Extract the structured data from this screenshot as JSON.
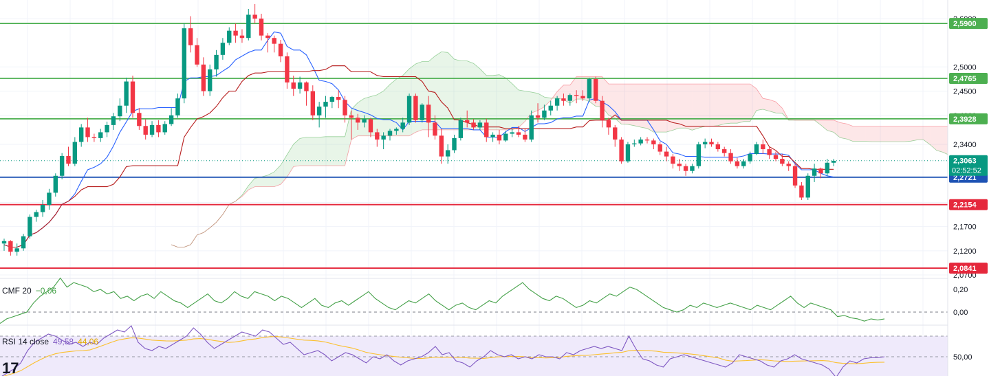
{
  "chart_data": {
    "type": "candlestick",
    "price_axis": {
      "ticks": [
        "2,6000",
        "2,5000",
        "2,4500",
        "2,4000",
        "2,3400",
        "2,2700",
        "2,2200",
        "2,1700",
        "2,1200",
        "2,0700"
      ]
    },
    "horizontal_levels": [
      {
        "label": "2,5900",
        "value": 2.59,
        "color": "#4caf50"
      },
      {
        "label": "2,4765",
        "value": 2.4765,
        "color": "#4caf50"
      },
      {
        "label": "2,3928",
        "value": 2.3928,
        "color": "#4caf50"
      },
      {
        "label": "2,2721",
        "value": 2.2721,
        "color": "#1e53b4"
      },
      {
        "label": "2,2154",
        "value": 2.2154,
        "color": "#e5283c"
      },
      {
        "label": "2,0841",
        "value": 2.0841,
        "color": "#e5283c"
      }
    ],
    "last_price": {
      "label": "2,3063",
      "value": 2.3063,
      "countdown": "02:52:52",
      "color": "#089981"
    },
    "candle_colors": {
      "up": "#089981",
      "down": "#f23645"
    },
    "candles": [
      [
        2.135,
        2.145,
        2.12,
        2.14
      ],
      [
        2.14,
        2.142,
        2.11,
        2.118
      ],
      [
        2.118,
        2.135,
        2.11,
        2.125
      ],
      [
        2.125,
        2.155,
        2.12,
        2.15
      ],
      [
        2.15,
        2.195,
        2.145,
        2.19
      ],
      [
        2.19,
        2.205,
        2.18,
        2.2
      ],
      [
        2.2,
        2.225,
        2.19,
        2.215
      ],
      [
        2.215,
        2.248,
        2.205,
        2.24
      ],
      [
        2.24,
        2.28,
        2.232,
        2.275
      ],
      [
        2.275,
        2.322,
        2.268,
        2.316
      ],
      [
        2.316,
        2.335,
        2.295,
        2.3
      ],
      [
        2.3,
        2.355,
        2.295,
        2.345
      ],
      [
        2.345,
        2.382,
        2.335,
        2.375
      ],
      [
        2.375,
        2.395,
        2.345,
        2.355
      ],
      [
        2.355,
        2.362,
        2.345,
        2.353
      ],
      [
        2.353,
        2.372,
        2.345,
        2.365
      ],
      [
        2.365,
        2.387,
        2.355,
        2.38
      ],
      [
        2.38,
        2.405,
        2.37,
        2.398
      ],
      [
        2.398,
        2.435,
        2.388,
        2.42
      ],
      [
        2.42,
        2.478,
        2.405,
        2.47
      ],
      [
        2.47,
        2.482,
        2.395,
        2.405
      ],
      [
        2.405,
        2.415,
        2.37,
        2.378
      ],
      [
        2.378,
        2.392,
        2.35,
        2.36
      ],
      [
        2.36,
        2.388,
        2.355,
        2.38
      ],
      [
        2.38,
        2.39,
        2.355,
        2.365
      ],
      [
        2.365,
        2.388,
        2.36,
        2.382
      ],
      [
        2.382,
        2.415,
        2.378,
        2.4
      ],
      [
        2.4,
        2.445,
        2.395,
        2.435
      ],
      [
        2.435,
        2.59,
        2.425,
        2.58
      ],
      [
        2.58,
        2.605,
        2.53,
        2.545
      ],
      [
        2.545,
        2.56,
        2.5,
        2.505
      ],
      [
        2.505,
        2.52,
        2.44,
        2.45
      ],
      [
        2.45,
        2.505,
        2.44,
        2.495
      ],
      [
        2.495,
        2.535,
        2.48,
        2.525
      ],
      [
        2.525,
        2.56,
        2.515,
        2.55
      ],
      [
        2.55,
        2.582,
        2.545,
        2.575
      ],
      [
        2.575,
        2.59,
        2.55,
        2.565
      ],
      [
        2.565,
        2.578,
        2.55,
        2.56
      ],
      [
        2.56,
        2.62,
        2.555,
        2.608
      ],
      [
        2.608,
        2.63,
        2.59,
        2.6
      ],
      [
        2.6,
        2.61,
        2.555,
        2.565
      ],
      [
        2.565,
        2.57,
        2.53,
        2.56
      ],
      [
        2.56,
        2.565,
        2.53,
        2.548
      ],
      [
        2.548,
        2.556,
        2.51,
        2.522
      ],
      [
        2.522,
        2.53,
        2.455,
        2.468
      ],
      [
        2.468,
        2.482,
        2.44,
        2.455
      ],
      [
        2.455,
        2.48,
        2.445,
        2.468
      ],
      [
        2.468,
        2.47,
        2.42,
        2.45
      ],
      [
        2.45,
        2.462,
        2.39,
        2.4
      ],
      [
        2.4,
        2.428,
        2.375,
        2.418
      ],
      [
        2.418,
        2.44,
        2.395,
        2.428
      ],
      [
        2.428,
        2.44,
        2.415,
        2.438
      ],
      [
        2.438,
        2.452,
        2.415,
        2.432
      ],
      [
        2.432,
        2.44,
        2.385,
        2.4
      ],
      [
        2.4,
        2.41,
        2.35,
        2.395
      ],
      [
        2.395,
        2.403,
        2.37,
        2.385
      ],
      [
        2.385,
        2.4,
        2.375,
        2.392
      ],
      [
        2.392,
        2.395,
        2.355,
        2.365
      ],
      [
        2.365,
        2.372,
        2.335,
        2.35
      ],
      [
        2.35,
        2.365,
        2.33,
        2.358
      ],
      [
        2.358,
        2.372,
        2.348,
        2.368
      ],
      [
        2.368,
        2.375,
        2.36,
        2.372
      ],
      [
        2.372,
        2.395,
        2.365,
        2.385
      ],
      [
        2.385,
        2.445,
        2.38,
        2.44
      ],
      [
        2.44,
        2.445,
        2.385,
        2.39
      ],
      [
        2.39,
        2.425,
        2.385,
        2.422
      ],
      [
        2.422,
        2.44,
        2.355,
        2.385
      ],
      [
        2.385,
        2.4,
        2.35,
        2.358
      ],
      [
        2.358,
        2.372,
        2.3,
        2.315
      ],
      [
        2.315,
        2.34,
        2.3,
        2.328
      ],
      [
        2.328,
        2.36,
        2.322,
        2.353
      ],
      [
        2.353,
        2.395,
        2.348,
        2.39
      ],
      [
        2.39,
        2.41,
        2.375,
        2.385
      ],
      [
        2.385,
        2.392,
        2.37,
        2.375
      ],
      [
        2.375,
        2.39,
        2.37,
        2.385
      ],
      [
        2.385,
        2.393,
        2.345,
        2.355
      ],
      [
        2.355,
        2.365,
        2.345,
        2.36
      ],
      [
        2.36,
        2.37,
        2.34,
        2.348
      ],
      [
        2.348,
        2.368,
        2.345,
        2.362
      ],
      [
        2.362,
        2.372,
        2.355,
        2.365
      ],
      [
        2.365,
        2.378,
        2.355,
        2.36
      ],
      [
        2.36,
        2.372,
        2.345,
        2.35
      ],
      [
        2.35,
        2.41,
        2.345,
        2.4
      ],
      [
        2.4,
        2.425,
        2.385,
        2.395
      ],
      [
        2.395,
        2.422,
        2.39,
        2.41
      ],
      [
        2.41,
        2.43,
        2.4,
        2.42
      ],
      [
        2.42,
        2.44,
        2.41,
        2.435
      ],
      [
        2.435,
        2.445,
        2.42,
        2.43
      ],
      [
        2.43,
        2.445,
        2.42,
        2.442
      ],
      [
        2.442,
        2.452,
        2.425,
        2.44
      ],
      [
        2.44,
        2.452,
        2.43,
        2.435
      ],
      [
        2.435,
        2.478,
        2.428,
        2.475
      ],
      [
        2.475,
        2.48,
        2.425,
        2.43
      ],
      [
        2.43,
        2.44,
        2.375,
        2.39
      ],
      [
        2.39,
        2.395,
        2.36,
        2.375
      ],
      [
        2.375,
        2.38,
        2.335,
        2.35
      ],
      [
        2.35,
        2.355,
        2.3,
        2.305
      ],
      [
        2.305,
        2.345,
        2.302,
        2.34
      ],
      [
        2.34,
        2.35,
        2.335,
        2.342
      ],
      [
        2.342,
        2.355,
        2.338,
        2.35
      ],
      [
        2.35,
        2.355,
        2.342,
        2.348
      ],
      [
        2.348,
        2.352,
        2.33,
        2.34
      ],
      [
        2.34,
        2.345,
        2.318,
        2.325
      ],
      [
        2.325,
        2.335,
        2.305,
        2.315
      ],
      [
        2.315,
        2.32,
        2.29,
        2.3
      ],
      [
        2.3,
        2.31,
        2.285,
        2.295
      ],
      [
        2.295,
        2.3,
        2.275,
        2.285
      ],
      [
        2.285,
        2.3,
        2.28,
        2.295
      ],
      [
        2.295,
        2.345,
        2.29,
        2.34
      ],
      [
        2.34,
        2.352,
        2.332,
        2.345
      ],
      [
        2.345,
        2.352,
        2.335,
        2.34
      ],
      [
        2.34,
        2.345,
        2.325,
        2.33
      ],
      [
        2.33,
        2.335,
        2.315,
        2.322
      ],
      [
        2.322,
        2.33,
        2.3,
        2.305
      ],
      [
        2.305,
        2.312,
        2.29,
        2.295
      ],
      [
        2.295,
        2.31,
        2.29,
        2.305
      ],
      [
        2.305,
        2.325,
        2.3,
        2.32
      ],
      [
        2.32,
        2.345,
        2.318,
        2.34
      ],
      [
        2.34,
        2.35,
        2.32,
        2.33
      ],
      [
        2.33,
        2.335,
        2.31,
        2.318
      ],
      [
        2.318,
        2.325,
        2.305,
        2.31
      ],
      [
        2.31,
        2.32,
        2.295,
        2.3
      ],
      [
        2.3,
        2.305,
        2.285,
        2.295
      ],
      [
        2.295,
        2.3,
        2.25,
        2.255
      ],
      [
        2.255,
        2.262,
        2.225,
        2.23
      ],
      [
        2.23,
        2.28,
        2.225,
        2.275
      ],
      [
        2.275,
        2.3,
        2.262,
        2.29
      ],
      [
        2.29,
        2.292,
        2.27,
        2.28
      ],
      [
        2.28,
        2.31,
        2.275,
        2.302
      ],
      [
        2.302,
        2.31,
        2.295,
        2.306
      ]
    ],
    "cmf": {
      "label": "CMF 20",
      "value_label": "−0,06",
      "color": "#43a047",
      "axis_ticks": [
        "0,20",
        "0,00"
      ],
      "values": [
        -0.1,
        -0.06,
        -0.04,
        -0.02,
        0.0,
        0.08,
        0.14,
        0.18,
        0.22,
        0.3,
        0.22,
        0.26,
        0.24,
        0.22,
        0.18,
        0.2,
        0.16,
        0.18,
        0.12,
        0.14,
        0.1,
        0.14,
        0.16,
        0.12,
        0.18,
        0.14,
        0.1,
        0.08,
        0.04,
        0.08,
        0.12,
        0.16,
        0.1,
        0.08,
        0.12,
        0.18,
        0.14,
        0.12,
        0.18,
        0.16,
        0.14,
        0.1,
        0.14,
        0.12,
        0.08,
        0.04,
        0.08,
        0.12,
        0.06,
        0.04,
        0.08,
        0.1,
        0.06,
        0.1,
        0.14,
        0.18,
        0.12,
        0.08,
        0.04,
        0.02,
        0.06,
        0.1,
        0.08,
        0.12,
        0.16,
        0.1,
        0.06,
        0.02,
        0.06,
        0.08,
        0.04,
        0.02,
        0.06,
        0.1,
        0.08,
        0.14,
        0.18,
        0.22,
        0.26,
        0.2,
        0.16,
        0.12,
        0.1,
        0.14,
        0.12,
        0.08,
        0.04,
        0.06,
        0.1,
        0.08,
        0.12,
        0.16,
        0.14,
        0.18,
        0.22,
        0.2,
        0.16,
        0.12,
        0.08,
        0.04,
        0.02,
        0.0,
        0.02,
        0.06,
        0.04,
        0.08,
        0.06,
        0.04,
        0.06,
        0.08,
        0.06,
        0.04,
        0.02,
        0.06,
        0.04,
        0.02,
        0.06,
        0.1,
        0.14,
        0.08,
        0.04,
        0.08,
        0.06,
        0.04,
        0.02,
        -0.04,
        -0.03,
        -0.05,
        -0.06,
        -0.08,
        -0.06,
        -0.07,
        -0.06
      ]
    },
    "rsi": {
      "label": "RSI 14 close",
      "value_label": "49,58",
      "ma_label": "44,06",
      "color": "#7e57c2",
      "ma_color": "#fbc02d",
      "band_color": "#efeafb",
      "axis_ticks": [
        "50,00"
      ],
      "values": [
        30,
        34,
        38,
        44,
        56,
        64,
        68,
        72,
        70,
        66,
        62,
        64,
        60,
        64,
        62,
        68,
        72,
        76,
        74,
        80,
        64,
        58,
        56,
        60,
        58,
        62,
        66,
        70,
        78,
        72,
        64,
        58,
        62,
        66,
        70,
        74,
        72,
        70,
        76,
        74,
        68,
        62,
        64,
        58,
        52,
        54,
        56,
        52,
        46,
        50,
        54,
        52,
        48,
        44,
        50,
        48,
        52,
        46,
        42,
        46,
        48,
        50,
        54,
        60,
        52,
        54,
        46,
        44,
        40,
        46,
        50,
        56,
        52,
        50,
        52,
        48,
        50,
        48,
        52,
        50,
        50,
        48,
        54,
        52,
        56,
        58,
        60,
        58,
        60,
        58,
        56,
        70,
        58,
        48,
        46,
        42,
        40,
        48,
        50,
        52,
        50,
        48,
        46,
        44,
        42,
        40,
        44,
        52,
        50,
        48,
        46,
        42,
        40,
        46,
        48,
        52,
        48,
        46,
        44,
        42,
        38,
        30,
        40,
        46,
        44,
        48,
        49,
        49,
        50
      ]
    }
  }
}
